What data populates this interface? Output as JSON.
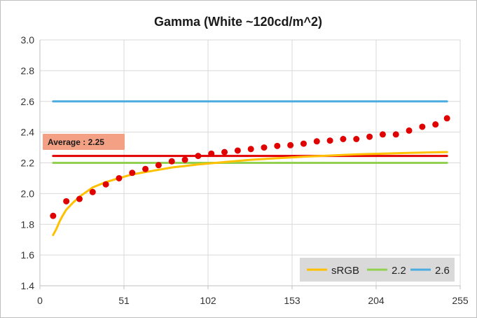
{
  "chart_data": {
    "type": "line",
    "title": "Gamma (White ~120cd/m^2)",
    "xlabel": "",
    "ylabel": "",
    "xlim": [
      0,
      255
    ],
    "ylim": [
      1.4,
      3.0
    ],
    "x_ticks": [
      "0",
      "51",
      "102",
      "153",
      "204",
      "255"
    ],
    "y_ticks": [
      "1.4",
      "1.6",
      "1.8",
      "2.0",
      "2.2",
      "2.4",
      "2.6",
      "2.8",
      "3.0"
    ],
    "grid": true,
    "legend_placement": "bottom-right",
    "annotation": {
      "text": "Average : 2.25",
      "value": 2.245
    },
    "colors": {
      "measured": "#e00000",
      "average": "#e00000",
      "average_box": "#f4a084",
      "srgb": "#ffc000",
      "g22": "#92d050",
      "g26": "#4bacdf",
      "grid": "#d9d9d9",
      "legend_bg": "#d9d9d9"
    },
    "series": [
      {
        "name": "sRGB",
        "type": "line",
        "x": [
          8,
          10,
          12,
          14,
          16,
          20,
          24,
          28,
          32,
          40,
          48,
          56,
          64,
          80,
          96,
          112,
          128,
          160,
          192,
          224,
          247
        ],
        "y": [
          1.73,
          1.77,
          1.82,
          1.86,
          1.895,
          1.94,
          1.98,
          2.01,
          2.04,
          2.075,
          2.1,
          2.125,
          2.14,
          2.17,
          2.19,
          2.205,
          2.22,
          2.24,
          2.255,
          2.265,
          2.27
        ]
      },
      {
        "name": "2.2",
        "type": "line",
        "x": [
          8,
          247
        ],
        "y": [
          2.2,
          2.2
        ]
      },
      {
        "name": "2.6",
        "type": "line",
        "x": [
          8,
          247
        ],
        "y": [
          2.6,
          2.6
        ]
      },
      {
        "type": "line",
        "x": [
          8,
          247
        ],
        "y": [
          2.245,
          2.245
        ]
      },
      {
        "type": "scatter",
        "x": [
          8,
          16,
          24,
          32,
          40,
          48,
          56,
          64,
          72,
          80,
          88,
          96,
          104,
          112,
          120,
          128,
          136,
          144,
          152,
          160,
          168,
          176,
          184,
          192,
          200,
          208,
          216,
          224,
          232,
          240,
          247
        ],
        "y": [
          1.855,
          1.95,
          1.965,
          2.01,
          2.06,
          2.1,
          2.135,
          2.16,
          2.185,
          2.21,
          2.22,
          2.245,
          2.26,
          2.27,
          2.28,
          2.29,
          2.3,
          2.31,
          2.315,
          2.325,
          2.34,
          2.345,
          2.355,
          2.355,
          2.37,
          2.385,
          2.385,
          2.41,
          2.435,
          2.45,
          2.49
        ]
      }
    ]
  }
}
